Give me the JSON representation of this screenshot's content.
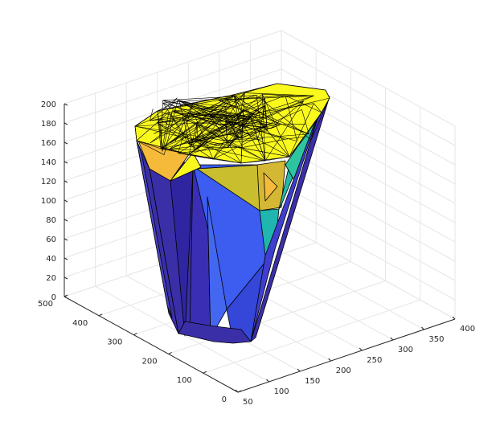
{
  "chart_data": {
    "type": "surface",
    "title": "",
    "xlabel": "",
    "ylabel": "",
    "zlabel": "",
    "grid": true,
    "view": "3-D isometric",
    "colormap": "parula",
    "axes": {
      "x": {
        "range": [
          50,
          400
        ],
        "ticks": [
          50,
          100,
          150,
          200,
          250,
          300,
          350,
          400
        ]
      },
      "y": {
        "range": [
          0,
          500
        ],
        "ticks": [
          0,
          100,
          200,
          300,
          400,
          500
        ]
      },
      "z": {
        "range": [
          0,
          200
        ],
        "ticks": [
          0,
          20,
          40,
          60,
          80,
          100,
          120,
          140,
          160,
          180,
          200
        ]
      }
    },
    "surface_colors": {
      "dark_blue": "#3B2FA8",
      "blue": "#3D5CF0",
      "teal": "#1FB6B0",
      "orange": "#F5BA3A",
      "olive": "#C9BF2E",
      "yellow": "#F9F91E",
      "edge": "#000000"
    }
  }
}
